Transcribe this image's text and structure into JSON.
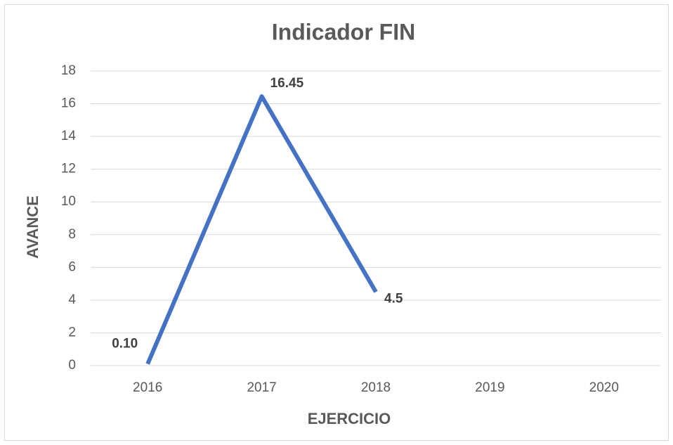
{
  "chart_data": {
    "type": "line",
    "title": "Indicador FIN",
    "x_label": "EJERCICIO",
    "y_label": "AVANCE",
    "categories": [
      "2016",
      "2017",
      "2018",
      "2019",
      "2020"
    ],
    "series": [
      {
        "name": "Indicador FIN",
        "color": "#4472c4",
        "values": [
          0.1,
          16.45,
          4.5,
          null,
          null
        ],
        "value_labels": [
          "0.10",
          "16.45",
          "4.5",
          null,
          null
        ]
      }
    ],
    "ylim": [
      0,
      18
    ],
    "yticks": [
      0,
      2,
      4,
      6,
      8,
      10,
      12,
      14,
      16,
      18
    ],
    "grid": true
  }
}
